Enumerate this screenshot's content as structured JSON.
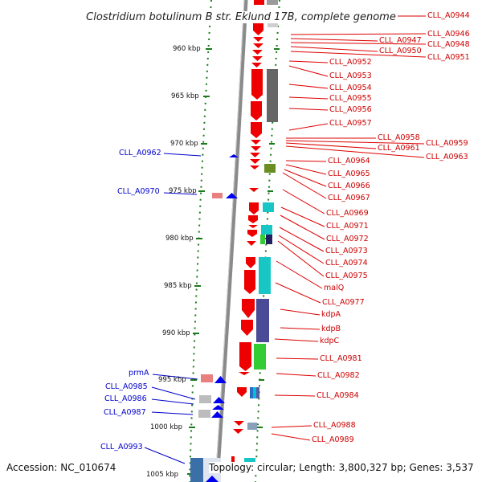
{
  "title": "Clostridium botulinum B str. Eklund 17B, complete genome",
  "footer": {
    "accession": "Accession: NC_010674",
    "topology": "Topology: circular; Length: 3,800,327 bp; Genes: 3,537"
  },
  "colors": {
    "backbone": "#8a8a8a",
    "forward_genes": "#ee0000",
    "reverse_genes": "#0000ee",
    "right_label": "#cc0000",
    "left_label": "#0000cc",
    "tick": "#1a7a1a",
    "cog_gray": "#666666",
    "cog_cyan": "#19c6c6",
    "cog_purple": "#4a4a96",
    "cog_green": "#33cc33",
    "cog_olive": "#6b8e23"
  },
  "scale_labels": [
    "960 kbp",
    "965 kbp",
    "970 kbp",
    "975 kbp",
    "980 kbp",
    "985 kbp",
    "990 kbp",
    "995 kbp",
    "1000 kbp",
    "1005 kbp"
  ],
  "right_labels": [
    "CLL_A0944",
    "CLL_A0946",
    "CLL_A0947",
    "CLL_A0948",
    "CLL_A0950",
    "CLL_A0951",
    "CLL_A0952",
    "CLL_A0953",
    "CLL_A0954",
    "CLL_A0955",
    "CLL_A0956",
    "CLL_A0957",
    "CLL_A0958",
    "CLL_A0959",
    "CLL_A0961",
    "CLL_A0963",
    "CLL_A0964",
    "CLL_A0965",
    "CLL_A0966",
    "CLL_A0967",
    "CLL_A0969",
    "CLL_A0971",
    "CLL_A0972",
    "CLL_A0973",
    "CLL_A0974",
    "CLL_A0975",
    "malQ",
    "CLL_A0977",
    "kdpA",
    "kdpB",
    "kdpC",
    "CLL_A0981",
    "CLL_A0982",
    "CLL_A0984",
    "CLL_A0988",
    "CLL_A0989"
  ],
  "left_labels": [
    "CLL_A0962",
    "CLL_A0970",
    "prmA",
    "CLL_A0985",
    "CLL_A0986",
    "CLL_A0987",
    "CLL_A0993"
  ]
}
